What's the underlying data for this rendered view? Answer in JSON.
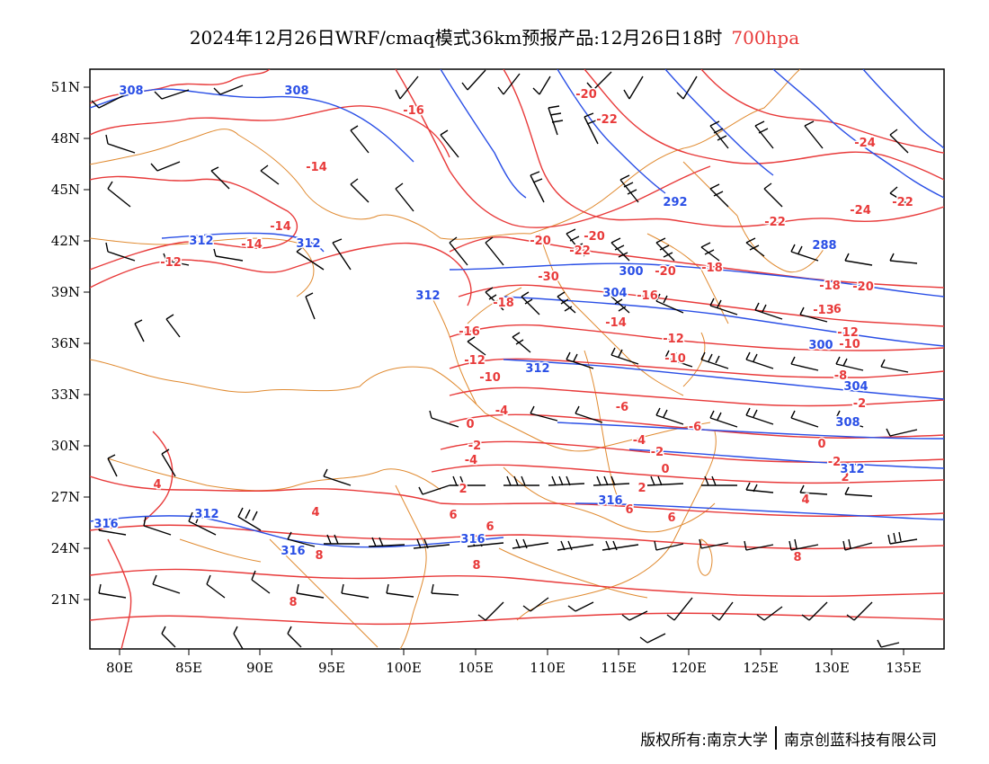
{
  "title": {
    "text": "2024年12月26日WRF/cmaq模式36km预报产品:12月26日18时",
    "level": "700hpa",
    "level_color": "#e83a3a"
  },
  "axes": {
    "lon_labels": [
      "80E",
      "85E",
      "90E",
      "95E",
      "100E",
      "105E",
      "110E",
      "115E",
      "120E",
      "125E",
      "130E",
      "135E"
    ],
    "lat_labels": [
      "51N",
      "48N",
      "45N",
      "42N",
      "39N",
      "36N",
      "33N",
      "30N",
      "27N",
      "24N",
      "21N"
    ]
  },
  "colors": {
    "temperature": "#e83a3a",
    "height": "#2a4fe6",
    "boundary": "#e08a30",
    "wind": "#000000"
  },
  "temp_labels": [
    "-16",
    "-14",
    "-14",
    "-14",
    "-12",
    "-20",
    "-22",
    "-24",
    "-22",
    "-24",
    "-22",
    "-20",
    "-20",
    "-22",
    "-30",
    "-20",
    "-18",
    "-16",
    "-18",
    "-20",
    "-18",
    "-16",
    "-14",
    "-13",
    "-12",
    "-16",
    "-12",
    "-10",
    "-12",
    "-10",
    "-10",
    "-8",
    "-6",
    "-4",
    "-2",
    "0",
    "-6",
    "-4",
    "-2",
    "0",
    "-2",
    "-4",
    "-2",
    "0",
    "2",
    "2",
    "2",
    "4",
    "4",
    "6",
    "6",
    "4",
    "6",
    "6",
    "8",
    "8",
    "8",
    "8"
  ],
  "height_labels": [
    "308",
    "308",
    "312",
    "312",
    "312",
    "300",
    "304",
    "292",
    "288",
    "312",
    "300",
    "304",
    "308",
    "312",
    "312",
    "316",
    "316",
    "316",
    "316"
  ],
  "footer": {
    "copyright_label": "版权所有:",
    "org1": "南京大学",
    "org2": "南京创蓝科技有限公司"
  }
}
